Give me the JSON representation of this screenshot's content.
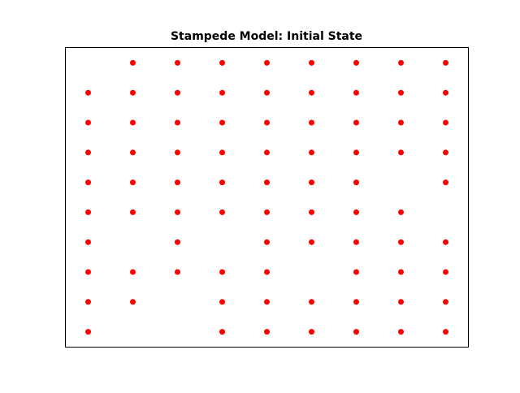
{
  "chart_data": {
    "type": "scatter",
    "title": "Stampede Model: Initial State",
    "xlabel": "",
    "ylabel": "",
    "xlim": [
      -0.5,
      8.5
    ],
    "ylim": [
      -0.5,
      9.5
    ],
    "grid": false,
    "axes_ticks_visible": false,
    "marker": "circle",
    "marker_color": "#ff0000",
    "series": [
      {
        "points": [
          {
            "x": 1,
            "y": 9
          },
          {
            "x": 2,
            "y": 9
          },
          {
            "x": 3,
            "y": 9
          },
          {
            "x": 4,
            "y": 9
          },
          {
            "x": 5,
            "y": 9
          },
          {
            "x": 6,
            "y": 9
          },
          {
            "x": 7,
            "y": 9
          },
          {
            "x": 8,
            "y": 9
          },
          {
            "x": 0,
            "y": 8
          },
          {
            "x": 1,
            "y": 8
          },
          {
            "x": 2,
            "y": 8
          },
          {
            "x": 3,
            "y": 8
          },
          {
            "x": 4,
            "y": 8
          },
          {
            "x": 5,
            "y": 8
          },
          {
            "x": 6,
            "y": 8
          },
          {
            "x": 7,
            "y": 8
          },
          {
            "x": 8,
            "y": 8
          },
          {
            "x": 0,
            "y": 7
          },
          {
            "x": 1,
            "y": 7
          },
          {
            "x": 2,
            "y": 7
          },
          {
            "x": 3,
            "y": 7
          },
          {
            "x": 4,
            "y": 7
          },
          {
            "x": 5,
            "y": 7
          },
          {
            "x": 6,
            "y": 7
          },
          {
            "x": 7,
            "y": 7
          },
          {
            "x": 8,
            "y": 7
          },
          {
            "x": 0,
            "y": 6
          },
          {
            "x": 1,
            "y": 6
          },
          {
            "x": 2,
            "y": 6
          },
          {
            "x": 3,
            "y": 6
          },
          {
            "x": 4,
            "y": 6
          },
          {
            "x": 5,
            "y": 6
          },
          {
            "x": 6,
            "y": 6
          },
          {
            "x": 7,
            "y": 6
          },
          {
            "x": 8,
            "y": 6
          },
          {
            "x": 0,
            "y": 5
          },
          {
            "x": 1,
            "y": 5
          },
          {
            "x": 2,
            "y": 5
          },
          {
            "x": 3,
            "y": 5
          },
          {
            "x": 4,
            "y": 5
          },
          {
            "x": 5,
            "y": 5
          },
          {
            "x": 6,
            "y": 5
          },
          {
            "x": 8,
            "y": 5
          },
          {
            "x": 0,
            "y": 4
          },
          {
            "x": 1,
            "y": 4
          },
          {
            "x": 2,
            "y": 4
          },
          {
            "x": 3,
            "y": 4
          },
          {
            "x": 4,
            "y": 4
          },
          {
            "x": 5,
            "y": 4
          },
          {
            "x": 6,
            "y": 4
          },
          {
            "x": 7,
            "y": 4
          },
          {
            "x": 0,
            "y": 3
          },
          {
            "x": 2,
            "y": 3
          },
          {
            "x": 4,
            "y": 3
          },
          {
            "x": 5,
            "y": 3
          },
          {
            "x": 6,
            "y": 3
          },
          {
            "x": 7,
            "y": 3
          },
          {
            "x": 8,
            "y": 3
          },
          {
            "x": 0,
            "y": 2
          },
          {
            "x": 1,
            "y": 2
          },
          {
            "x": 2,
            "y": 2
          },
          {
            "x": 3,
            "y": 2
          },
          {
            "x": 4,
            "y": 2
          },
          {
            "x": 6,
            "y": 2
          },
          {
            "x": 7,
            "y": 2
          },
          {
            "x": 8,
            "y": 2
          },
          {
            "x": 0,
            "y": 1
          },
          {
            "x": 1,
            "y": 1
          },
          {
            "x": 3,
            "y": 1
          },
          {
            "x": 4,
            "y": 1
          },
          {
            "x": 5,
            "y": 1
          },
          {
            "x": 6,
            "y": 1
          },
          {
            "x": 7,
            "y": 1
          },
          {
            "x": 8,
            "y": 1
          },
          {
            "x": 0,
            "y": 0
          },
          {
            "x": 3,
            "y": 0
          },
          {
            "x": 4,
            "y": 0
          },
          {
            "x": 5,
            "y": 0
          },
          {
            "x": 6,
            "y": 0
          },
          {
            "x": 7,
            "y": 0
          },
          {
            "x": 8,
            "y": 0
          }
        ]
      }
    ]
  }
}
